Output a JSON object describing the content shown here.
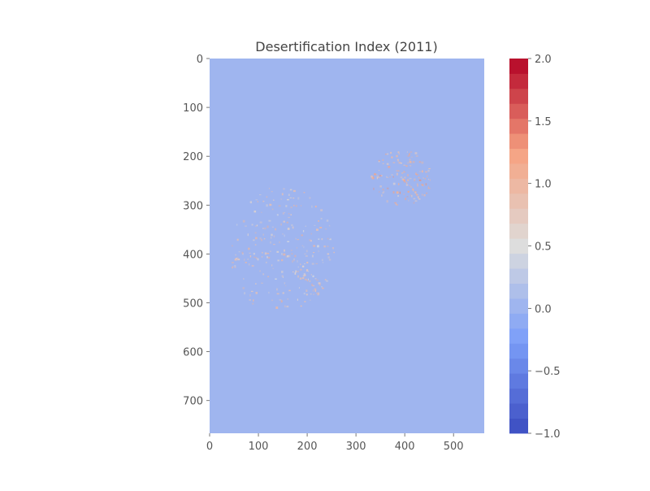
{
  "chart_data": {
    "type": "heatmap",
    "title": "Desertification Index (2011)",
    "xlabel": "",
    "ylabel": "",
    "xlim": [
      0,
      563
    ],
    "ylim": [
      767,
      0
    ],
    "x_ticks": [
      0,
      100,
      200,
      300,
      400,
      500
    ],
    "y_ticks": [
      0,
      100,
      200,
      300,
      400,
      500,
      600,
      700
    ],
    "x_tick_labels": [
      "0",
      "100",
      "200",
      "300",
      "400",
      "500"
    ],
    "y_tick_labels": [
      "0",
      "100",
      "200",
      "300",
      "400",
      "500",
      "600",
      "700"
    ],
    "background_value": 0.0,
    "colormap": "coolwarm",
    "colorbar": {
      "vmin": -1.0,
      "vmax": 2.0,
      "levels": 25,
      "ticks": [
        -1.0,
        -0.5,
        0.0,
        0.5,
        1.0,
        1.5,
        2.0
      ],
      "tick_labels": [
        "−1.0",
        "−0.5",
        "0.0",
        "0.5",
        "1.0",
        "1.5",
        "2.0"
      ]
    },
    "regions": [
      {
        "x": [
          40,
          255
        ],
        "y": [
          260,
          525
        ],
        "value": 0.9
      },
      {
        "x": [
          330,
          455
        ],
        "y": [
          185,
          300
        ],
        "value": 1.1
      }
    ],
    "grid": false,
    "legend": "colorbar-right"
  }
}
